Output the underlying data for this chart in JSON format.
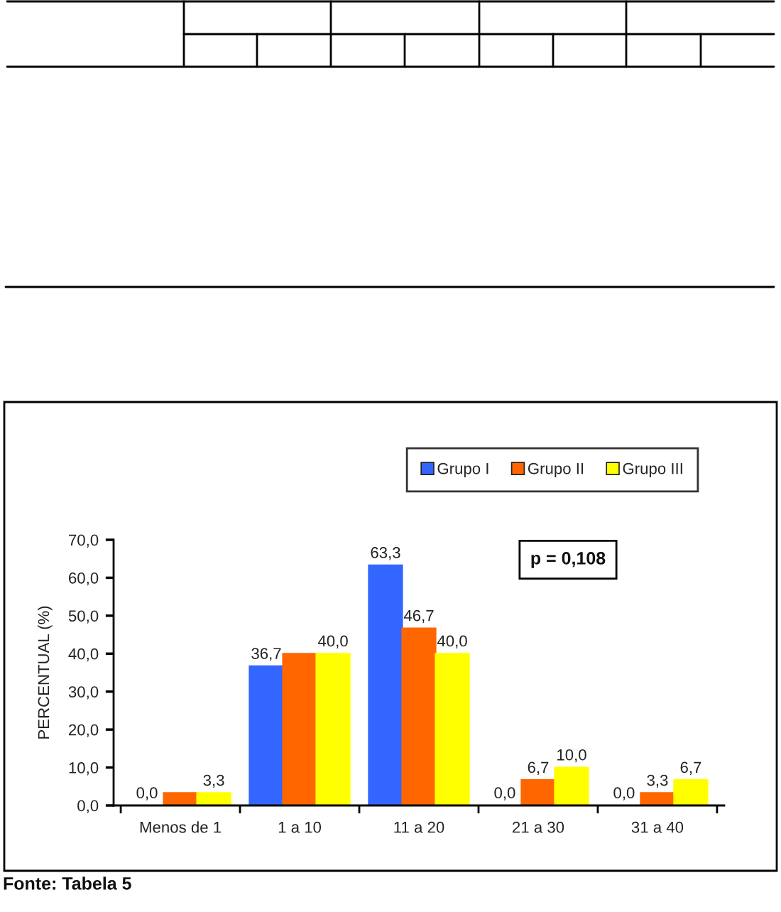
{
  "chart_data": {
    "type": "bar",
    "ylabel": "PERCENTUAL (%)",
    "annotations": [
      "p = 0,108",
      "Fonte: Tabela 5"
    ],
    "categories": [
      "Menos de 1",
      "1 a 10",
      "11 a 20",
      "21 a 30",
      "31 a 40"
    ],
    "series": [
      {
        "name": "Grupo I",
        "color": "#3366ff",
        "values": [
          0.0,
          36.7,
          63.3,
          0.0,
          0.0
        ],
        "value_labels": [
          "0,0",
          "36,7",
          "63,3",
          "0,0",
          "0,0"
        ]
      },
      {
        "name": "Grupo II",
        "color": "#ff6600",
        "values": [
          3.3,
          40.0,
          46.7,
          6.7,
          3.3
        ],
        "value_labels": [
          null,
          null,
          "46,7",
          "6,7",
          "3,3"
        ]
      },
      {
        "name": "Grupo III",
        "color": "#ffff00",
        "values": [
          3.3,
          40.0,
          40.0,
          10.0,
          6.7
        ],
        "value_labels": [
          "3,3",
          "40,0",
          "40,0",
          "10,0",
          "6,7"
        ]
      }
    ],
    "ylim": [
      0,
      70
    ],
    "yticks": [
      {
        "value": 0,
        "label": "0,0"
      },
      {
        "value": 10,
        "label": "10,0"
      },
      {
        "value": 20,
        "label": "20,0"
      },
      {
        "value": 30,
        "label": "30,0"
      },
      {
        "value": 40,
        "label": "40,0"
      },
      {
        "value": 50,
        "label": "50,0"
      },
      {
        "value": 60,
        "label": "60,0"
      },
      {
        "value": 70,
        "label": "70,0"
      }
    ],
    "grid": false,
    "legend": "top right"
  }
}
